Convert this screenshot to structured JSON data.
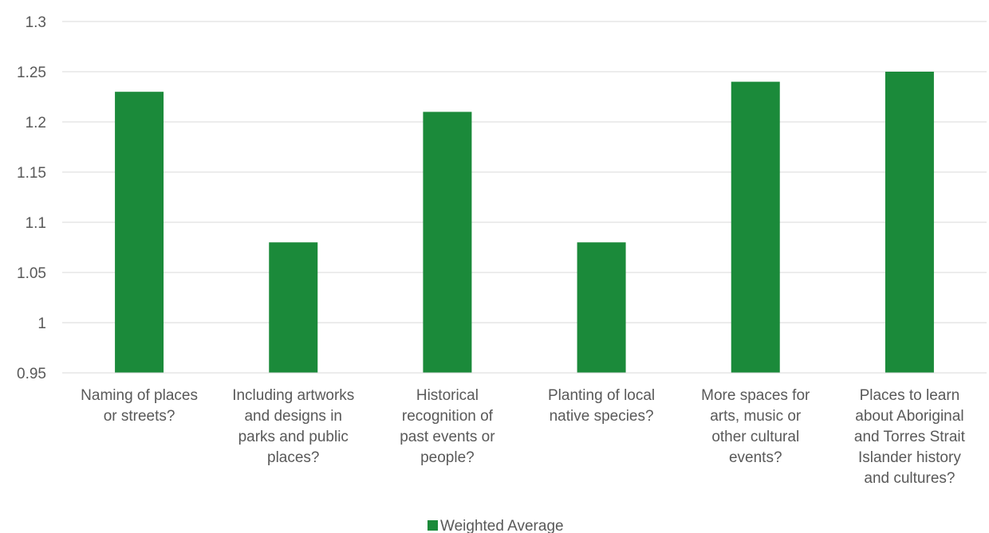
{
  "chart_data": {
    "type": "bar",
    "title": "",
    "xlabel": "",
    "ylabel": "",
    "categories": [
      [
        "Naming of places",
        "or streets?"
      ],
      [
        "Including artworks",
        "and designs in",
        "parks and public",
        "places?"
      ],
      [
        "Historical",
        "recognition of",
        "past events or",
        "people?"
      ],
      [
        "Planting of local",
        "native species?"
      ],
      [
        "More spaces for",
        "arts, music or",
        "other cultural",
        "events?"
      ],
      [
        "Places to learn",
        "about Aboriginal",
        "and Torres Strait",
        "Islander history",
        "and cultures?"
      ]
    ],
    "series": [
      {
        "name": "Weighted Average",
        "color": "#1b8a3a",
        "values": [
          1.23,
          1.08,
          1.21,
          1.08,
          1.24,
          1.25
        ]
      }
    ],
    "ylim": [
      0.95,
      1.3
    ],
    "yticks": [
      "0.95",
      "1",
      "1.05",
      "1.1",
      "1.15",
      "1.2",
      "1.25",
      "1.3"
    ],
    "grid": true,
    "legend_position": "bottom"
  }
}
